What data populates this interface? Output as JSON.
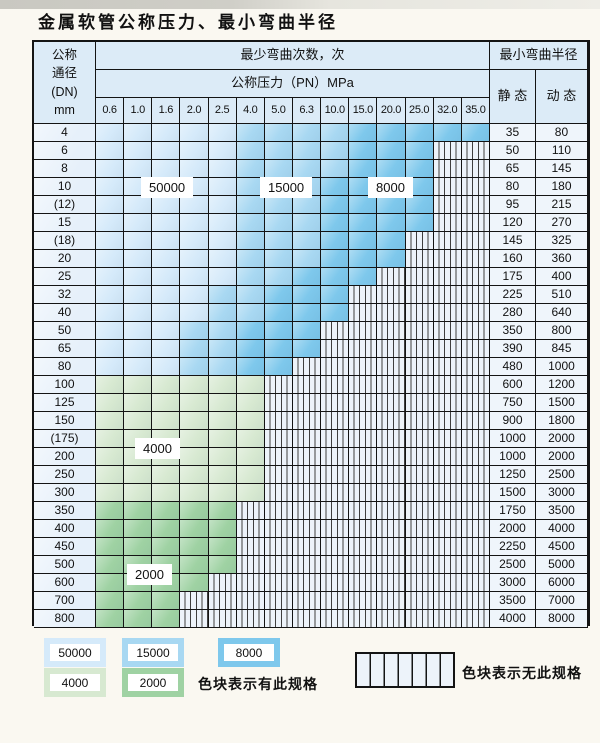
{
  "title": "金属软管公称压力、最小弯曲半径",
  "table": {
    "corner": "公称\n通径\n(DN)\nmm",
    "bend_cycles_header": "最少弯曲次数，次",
    "pressure_header": "公称压力（PN）MPa",
    "radius_header": "最小弯曲半径",
    "static_header": "静 态",
    "dynamic_header": "动 态",
    "pressure_cols": [
      "0.6",
      "1.0",
      "1.6",
      "2.0",
      "2.5",
      "4.0",
      "5.0",
      "6.3",
      "10.0",
      "15.0",
      "20.0",
      "25.0",
      "32.0",
      "35.0"
    ],
    "rows": [
      {
        "dn": "4",
        "st": "35",
        "dy": "80",
        "n": 14,
        "band": "b",
        "mid": 5,
        "dark": 9
      },
      {
        "dn": "6",
        "st": "50",
        "dy": "110",
        "n": 12,
        "band": "b",
        "mid": 5,
        "dark": 9
      },
      {
        "dn": "8",
        "st": "65",
        "dy": "145",
        "n": 12,
        "band": "b",
        "mid": 5,
        "dark": 9
      },
      {
        "dn": "10",
        "st": "80",
        "dy": "180",
        "n": 12,
        "band": "b",
        "mid": 5,
        "dark": 8
      },
      {
        "dn": "(12)",
        "st": "95",
        "dy": "215",
        "n": 12,
        "band": "b",
        "mid": 5,
        "dark": 8
      },
      {
        "dn": "15",
        "st": "120",
        "dy": "270",
        "n": 12,
        "band": "b",
        "mid": 5,
        "dark": 8
      },
      {
        "dn": "(18)",
        "st": "145",
        "dy": "325",
        "n": 11,
        "band": "b",
        "mid": 5,
        "dark": 8
      },
      {
        "dn": "20",
        "st": "160",
        "dy": "360",
        "n": 11,
        "band": "b",
        "mid": 5,
        "dark": 8
      },
      {
        "dn": "25",
        "st": "175",
        "dy": "400",
        "n": 10,
        "band": "b",
        "mid": 5,
        "dark": 7
      },
      {
        "dn": "32",
        "st": "225",
        "dy": "510",
        "n": 9,
        "band": "b",
        "mid": 4,
        "dark": 6
      },
      {
        "dn": "40",
        "st": "280",
        "dy": "640",
        "n": 9,
        "band": "b",
        "mid": 4,
        "dark": 6
      },
      {
        "dn": "50",
        "st": "350",
        "dy": "800",
        "n": 8,
        "band": "b",
        "mid": 3,
        "dark": 5
      },
      {
        "dn": "65",
        "st": "390",
        "dy": "845",
        "n": 8,
        "band": "b",
        "mid": 3,
        "dark": 5
      },
      {
        "dn": "80",
        "st": "480",
        "dy": "1000",
        "n": 7,
        "band": "b",
        "mid": 3,
        "dark": 5
      },
      {
        "dn": "100",
        "st": "600",
        "dy": "1200",
        "n": 6,
        "band": "gl"
      },
      {
        "dn": "125",
        "st": "750",
        "dy": "1500",
        "n": 6,
        "band": "gl"
      },
      {
        "dn": "150",
        "st": "900",
        "dy": "1800",
        "n": 6,
        "band": "gl"
      },
      {
        "dn": "(175)",
        "st": "1000",
        "dy": "2000",
        "n": 6,
        "band": "gl"
      },
      {
        "dn": "200",
        "st": "1000",
        "dy": "2000",
        "n": 6,
        "band": "gl"
      },
      {
        "dn": "250",
        "st": "1250",
        "dy": "2500",
        "n": 6,
        "band": "gl"
      },
      {
        "dn": "300",
        "st": "1500",
        "dy": "3000",
        "n": 6,
        "band": "gl"
      },
      {
        "dn": "350",
        "st": "1750",
        "dy": "3500",
        "n": 5,
        "band": "gd"
      },
      {
        "dn": "400",
        "st": "2000",
        "dy": "4000",
        "n": 5,
        "band": "gd"
      },
      {
        "dn": "450",
        "st": "2250",
        "dy": "4500",
        "n": 5,
        "band": "gd"
      },
      {
        "dn": "500",
        "st": "2500",
        "dy": "5000",
        "n": 5,
        "band": "gd"
      },
      {
        "dn": "600",
        "st": "3000",
        "dy": "6000",
        "n": 4,
        "band": "gd"
      },
      {
        "dn": "700",
        "st": "3500",
        "dy": "7000",
        "n": 3,
        "band": "gd"
      },
      {
        "dn": "800",
        "st": "4000",
        "dy": "8000",
        "n": 3,
        "band": "gd"
      }
    ]
  },
  "overlays": {
    "o50000": "50000",
    "o15000": "15000",
    "o8000": "8000",
    "o4000": "4000",
    "o2000": "2000"
  },
  "legend": {
    "l50000": "50000",
    "l15000": "15000",
    "l8000": "8000",
    "l4000": "4000",
    "l2000": "2000",
    "has_spec": "色块表示有此规格",
    "no_spec": "色块表示无此规格"
  },
  "colors": {
    "page_bg": "#faf8f1",
    "table_line": "#141414",
    "header_bg": "#dcebf7",
    "dn_bg": "#e6f0fa",
    "value_bg": "#eff5fb",
    "blue_50000": "#d5eafa",
    "blue_15000": "#a8d8f2",
    "blue_8000": "#7ec8ec",
    "green_4000": "#d7e9d1",
    "green_2000": "#9fd2a3",
    "hatch_bg": "#edf3fa"
  }
}
